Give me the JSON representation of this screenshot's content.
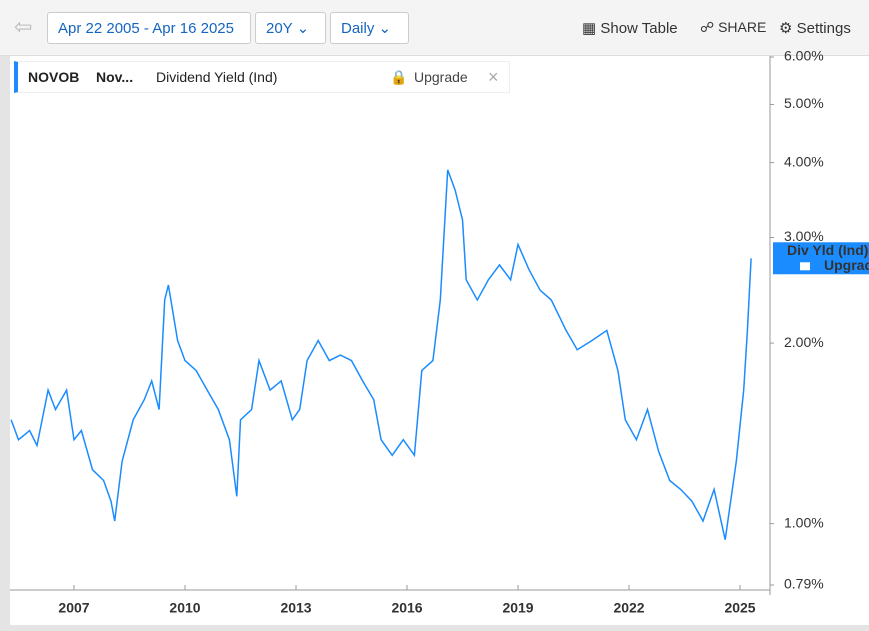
{
  "toolbar": {
    "date_range": "Apr 22 2005 - Apr 16 2025",
    "period": "20Y",
    "frequency": "Daily",
    "show_table": "Show Table",
    "share": "SHARE",
    "settings": "Settings"
  },
  "legend": {
    "ticker": "NOVOB",
    "name": "Nov...",
    "metric": "Dividend Yield (Ind)",
    "upgrade": "Upgrade"
  },
  "last_tag": {
    "label": "Div Yld (Ind)",
    "upgrade": "Upgrade"
  },
  "chart_data": {
    "type": "line",
    "log_scale": true,
    "color": "#1a8cff",
    "xlim": [
      2005.27,
      2025.81
    ],
    "xticks": [
      2007,
      2010,
      2013,
      2016,
      2019,
      2022,
      2025
    ],
    "ylim": [
      0.79,
      6
    ],
    "yticks": [
      {
        "value": 0.79,
        "label": "0.79%"
      },
      {
        "value": 1,
        "label": "1.00%"
      },
      {
        "value": 2,
        "label": "2.00%"
      },
      {
        "value": 3,
        "label": "3.00%"
      },
      {
        "value": 4,
        "label": "4.00%"
      },
      {
        "value": 5,
        "label": "5.00%"
      },
      {
        "value": 6,
        "label": "6.00%"
      }
    ],
    "series": [
      {
        "name": "Dividend Yield (Ind)",
        "color": "#1a8cff",
        "x": [
          2005.3,
          2005.5,
          2005.8,
          2006.0,
          2006.3,
          2006.5,
          2006.8,
          2007.0,
          2007.2,
          2007.5,
          2007.8,
          2008.0,
          2008.1,
          2008.3,
          2008.6,
          2008.9,
          2009.1,
          2009.3,
          2009.45,
          2009.55,
          2009.8,
          2010.0,
          2010.3,
          2010.6,
          2010.9,
          2011.2,
          2011.4,
          2011.5,
          2011.8,
          2012.0,
          2012.3,
          2012.6,
          2012.9,
          2013.1,
          2013.3,
          2013.6,
          2013.9,
          2014.2,
          2014.5,
          2014.8,
          2015.1,
          2015.3,
          2015.6,
          2015.9,
          2016.2,
          2016.4,
          2016.7,
          2016.9,
          2017.1,
          2017.3,
          2017.5,
          2017.6,
          2017.9,
          2018.2,
          2018.5,
          2018.8,
          2019.0,
          2019.3,
          2019.6,
          2019.9,
          2020.3,
          2020.6,
          2021.0,
          2021.4,
          2021.7,
          2021.9,
          2022.2,
          2022.5,
          2022.8,
          2023.1,
          2023.4,
          2023.7,
          2024.0,
          2024.3,
          2024.6,
          2024.9,
          2025.1,
          2025.2,
          2025.3
        ],
        "values": [
          1.49,
          1.38,
          1.43,
          1.35,
          1.67,
          1.55,
          1.67,
          1.38,
          1.43,
          1.23,
          1.18,
          1.09,
          1.01,
          1.27,
          1.49,
          1.61,
          1.73,
          1.55,
          2.36,
          2.5,
          2.02,
          1.87,
          1.8,
          1.67,
          1.55,
          1.38,
          1.11,
          1.49,
          1.55,
          1.87,
          1.67,
          1.73,
          1.49,
          1.55,
          1.87,
          2.02,
          1.87,
          1.91,
          1.87,
          1.73,
          1.61,
          1.38,
          1.3,
          1.38,
          1.3,
          1.8,
          1.87,
          2.36,
          3.89,
          3.6,
          3.21,
          2.55,
          2.36,
          2.55,
          2.7,
          2.55,
          2.92,
          2.65,
          2.45,
          2.36,
          2.1,
          1.95,
          2.02,
          2.1,
          1.8,
          1.49,
          1.38,
          1.55,
          1.32,
          1.18,
          1.14,
          1.09,
          1.01,
          1.14,
          0.94,
          1.27,
          1.67,
          2.1,
          2.77
        ]
      }
    ]
  }
}
